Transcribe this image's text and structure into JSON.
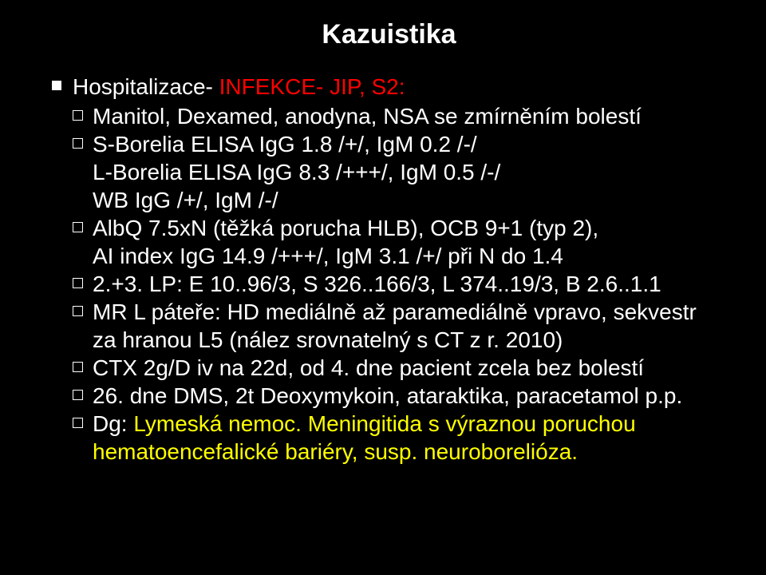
{
  "title": "Kazuistika",
  "colors": {
    "background": "#000000",
    "text": "#ffffff",
    "accent_red": "#ff0000",
    "accent_yellow": "#ffff00"
  },
  "top": {
    "prefix": "Hospitalizace- ",
    "highlight": "INFEKCE- JIP, S2:"
  },
  "items": {
    "i1": "Manitol, Dexamed, anodyna, NSA se zmírněním bolestí",
    "i2": "S-Borelia ELISA IgG 1.8 /+/, IgM 0.2 /-/",
    "i2b": "L-Borelia ELISA IgG 8.3 /+++/, IgM 0.5 /-/",
    "i2c": "WB IgG /+/, IgM /-/",
    "i3": "AlbQ 7.5xN (těžká porucha HLB), OCB 9+1 (typ 2),",
    "i3b": "AI index IgG 14.9 /+++/, IgM 3.1 /+/ při N do 1.4",
    "i4": "2.+3. LP: E 10..96/3, S 326..166/3, L 374..19/3, B 2.6..1.1",
    "i5": "MR L páteře: HD mediálně až paramediálně vpravo, sekvestr za hranou L5 (nález srovnatelný s CT z r. 2010)",
    "i6": "CTX 2g/D iv na 22d, od 4. dne pacient zcela bez bolestí",
    "i7": "26. dne DMS, 2t Deoxymykoin, ataraktika, paracetamol p.p.",
    "i8a": "Dg: ",
    "i8b": "Lymeská nemoc. Meningitida s výraznou poruchou hematoencefalické bariéry, susp. neuroborelióza."
  }
}
